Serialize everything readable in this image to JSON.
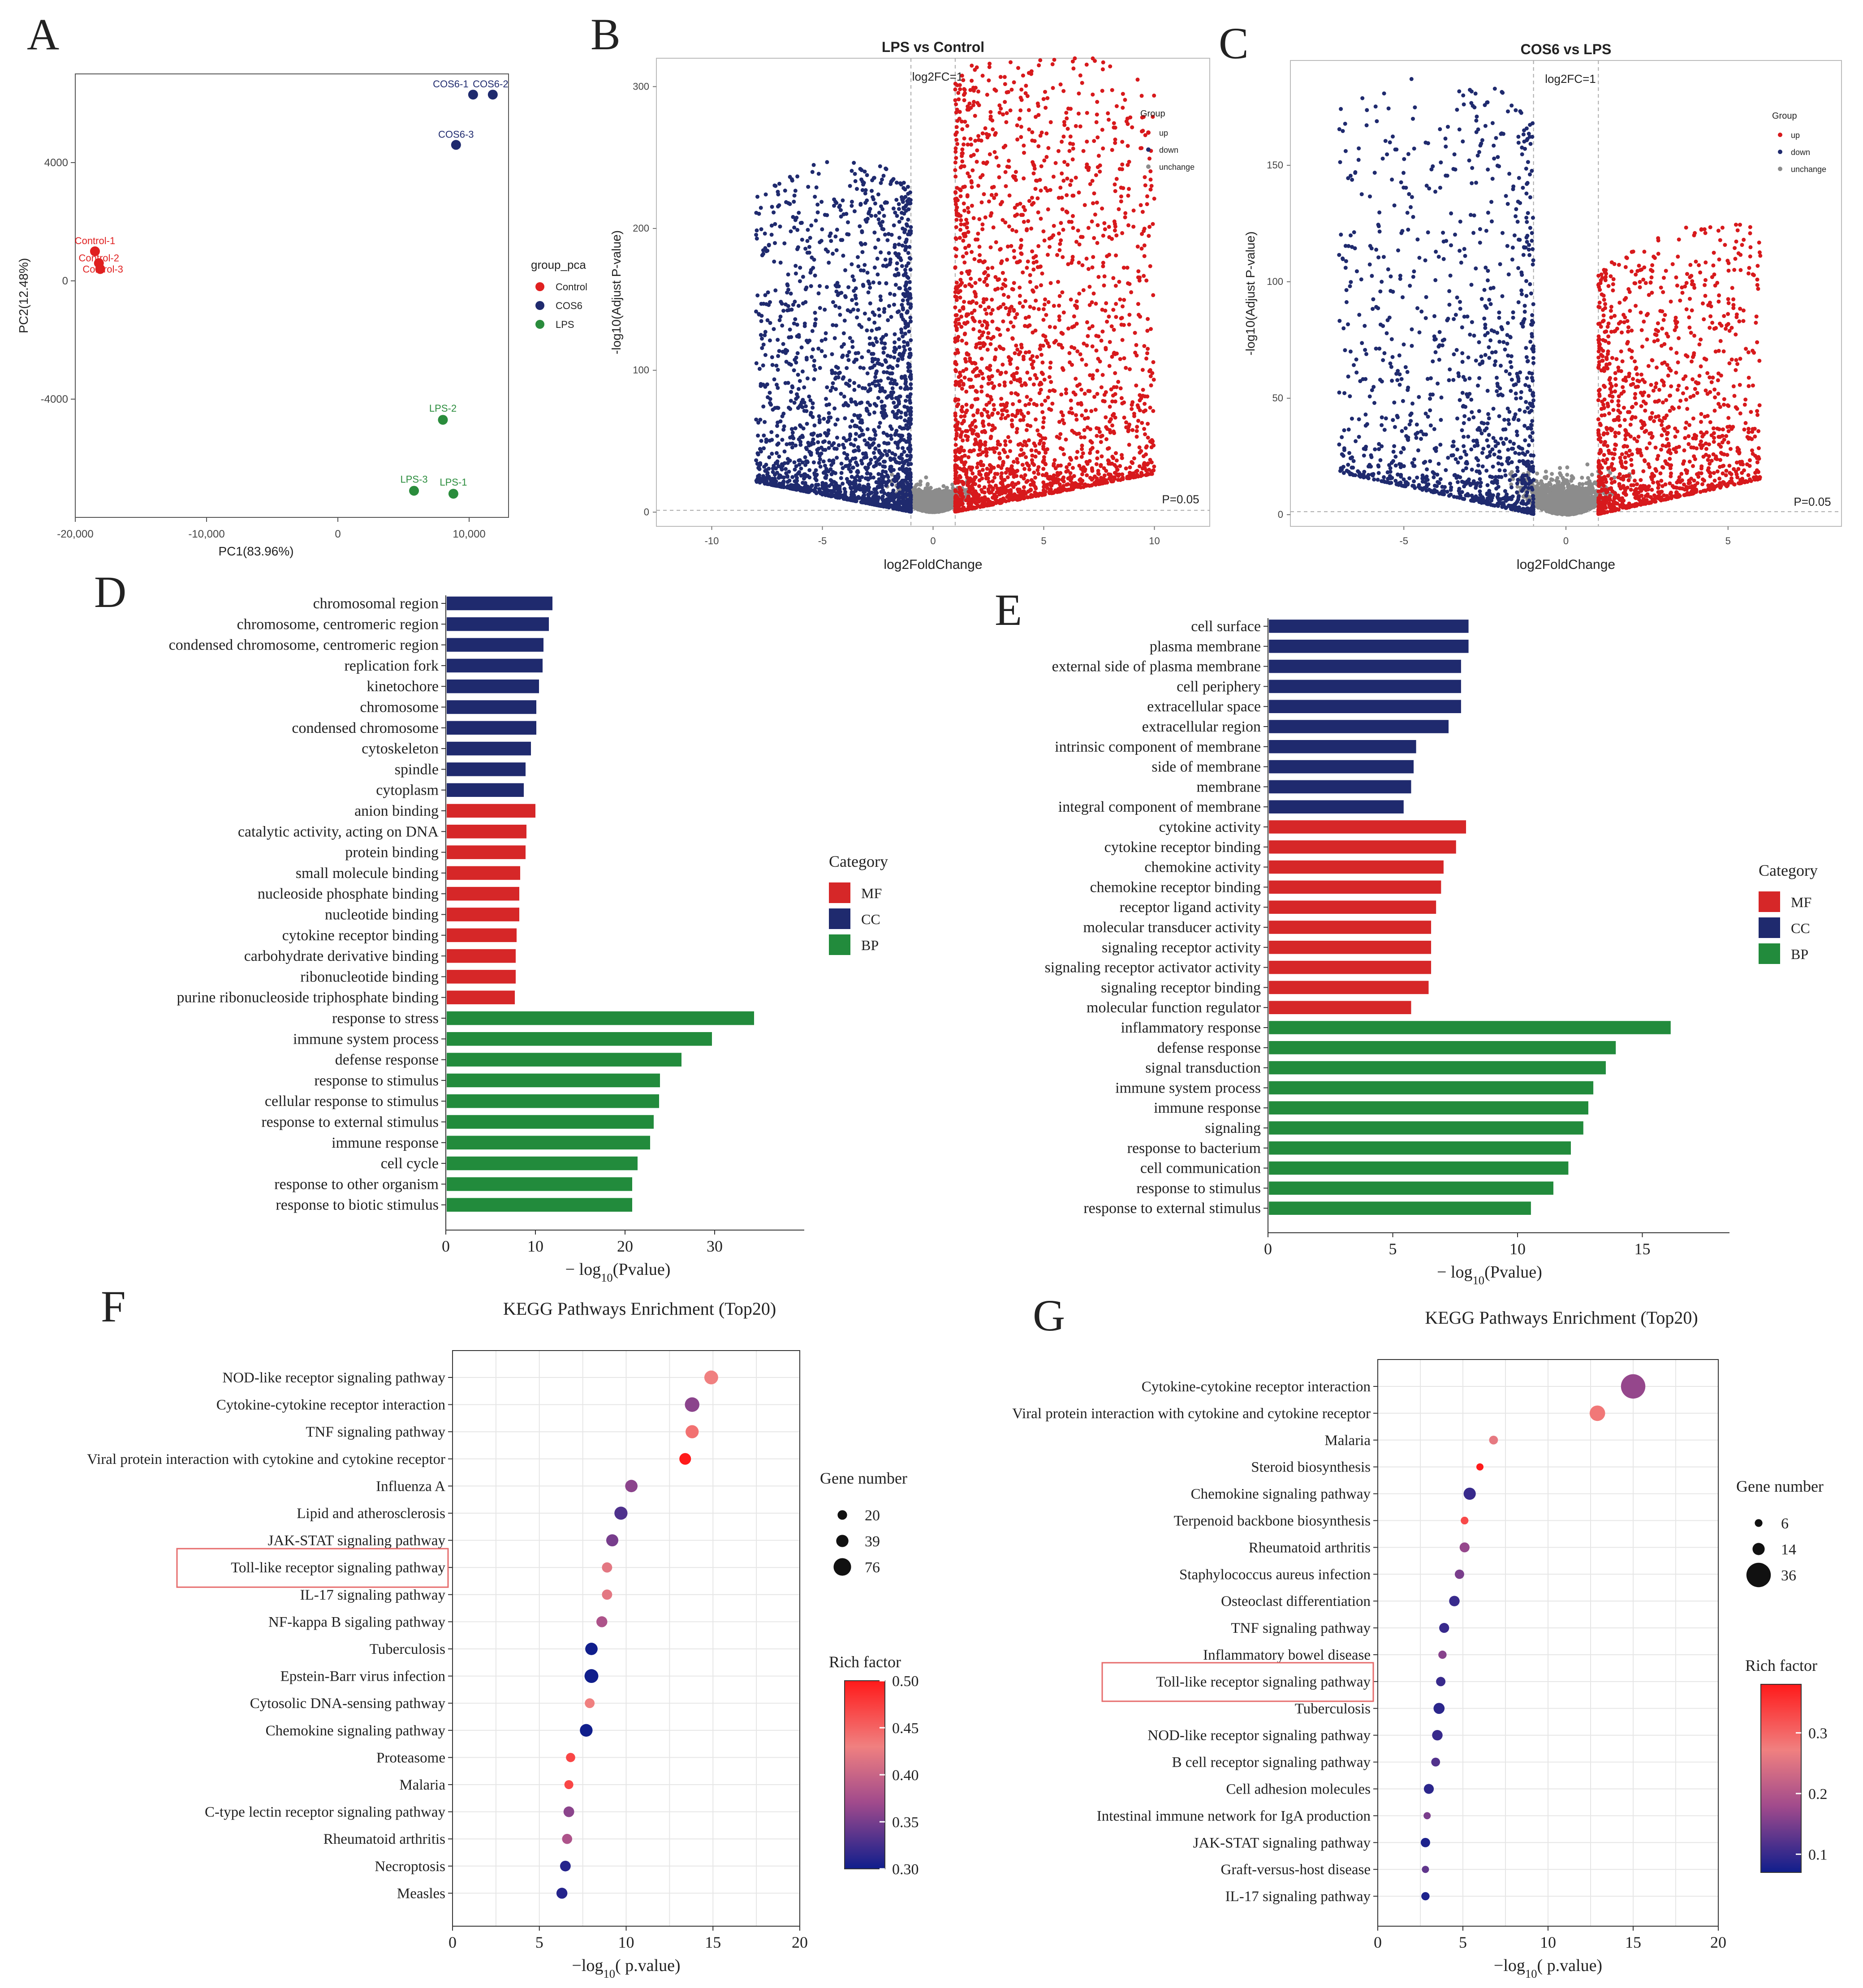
{
  "panels": {
    "A": "A",
    "B": "B",
    "C": "C",
    "D": "D",
    "E": "E",
    "F": "F",
    "G": "G"
  },
  "colors": {
    "up": "#d7191c",
    "down": "#1f2a6e",
    "unchange": "#8c8c8c",
    "MF": "#d62728",
    "CC": "#1f2a6e",
    "BP": "#228b3c",
    "control": "#e02020",
    "cos6": "#1f2a6e",
    "lps": "#2a8c3c",
    "highlight": "#e66b6b"
  },
  "chart_data": [
    {
      "id": "A",
      "type": "scatter",
      "title": "",
      "xlabel": "PC1(83.96%)",
      "ylabel": "PC2(12.48%)",
      "xlim": [
        -20000,
        13000
      ],
      "ylim": [
        -8000,
        7000
      ],
      "xticks": [
        -20000,
        -10000,
        0,
        10000
      ],
      "xtick_labels": [
        "-20,000",
        "-10,000",
        "0",
        "10,000"
      ],
      "yticks": [
        -4000,
        0,
        4000
      ],
      "ytick_labels": [
        "-4000",
        "0",
        "4000"
      ],
      "legend_title": "group_pca",
      "legend": [
        "Control",
        "COS6",
        "LPS"
      ],
      "points": [
        {
          "label": "Control-1",
          "group": "Control",
          "x": -18500,
          "y": 1000
        },
        {
          "label": "Control-2",
          "group": "Control",
          "x": -18200,
          "y": 600
        },
        {
          "label": "Control-3",
          "group": "Control",
          "x": -18100,
          "y": 400
        },
        {
          "label": "COS6-1",
          "group": "COS6",
          "x": 10300,
          "y": 6300
        },
        {
          "label": "COS6-2",
          "group": "COS6",
          "x": 11800,
          "y": 6300
        },
        {
          "label": "COS6-3",
          "group": "COS6",
          "x": 9000,
          "y": 4600
        },
        {
          "label": "LPS-1",
          "group": "LPS",
          "x": 8800,
          "y": -7200
        },
        {
          "label": "LPS-2",
          "group": "LPS",
          "x": 8000,
          "y": -4700
        },
        {
          "label": "LPS-3",
          "group": "LPS",
          "x": 5800,
          "y": -7100
        }
      ]
    },
    {
      "id": "B",
      "type": "scatter",
      "title": "LPS vs Control",
      "xlabel": "log2FoldChange",
      "ylabel": "-log10(Adjust P-value)",
      "xlim": [
        -12.5,
        12.5
      ],
      "ylim": [
        -10,
        320
      ],
      "xticks": [
        -10,
        -5,
        0,
        5,
        10
      ],
      "yticks": [
        0,
        100,
        200,
        300
      ],
      "fc_label": "log2FC=1",
      "p_label": "P=0.05",
      "legend_title": "Group",
      "legend": [
        "up",
        "down",
        "unchange"
      ],
      "volcano": {
        "up_max": 10,
        "down_min": -8,
        "peak_up": 320,
        "peak_down": 240
      }
    },
    {
      "id": "C",
      "type": "scatter",
      "title": "COS6 vs LPS",
      "xlabel": "log2FoldChange",
      "ylabel": "-log10(Adjust P-value)",
      "xlim": [
        -8.5,
        8.5
      ],
      "ylim": [
        -5,
        195
      ],
      "xticks": [
        -5,
        0,
        5
      ],
      "yticks": [
        0,
        50,
        100,
        150
      ],
      "fc_label": "log2FC=1",
      "p_label": "P=0.05",
      "legend_title": "Group",
      "legend": [
        "up",
        "down",
        "unchange"
      ],
      "volcano": {
        "up_max": 6,
        "down_min": -7,
        "peak_up": 115,
        "peak_down": 180
      }
    },
    {
      "id": "D",
      "type": "bar",
      "orientation": "horizontal",
      "xlabel": "− log10(Pvalue)",
      "xlim": [
        0,
        40
      ],
      "xticks": [
        0,
        10,
        20,
        30
      ],
      "legend_title": "Category",
      "legend": [
        "MF",
        "CC",
        "BP"
      ],
      "categories": [
        "chromosomal region",
        "chromosome, centromeric region",
        "condensed chromosome, centromeric region",
        "replication fork",
        "kinetochore",
        "chromosome",
        "condensed chromosome",
        "cytoskeleton",
        "spindle",
        "cytoplasm",
        "anion binding",
        "catalytic activity, acting on DNA",
        "protein binding",
        "small molecule binding",
        "nucleoside phosphate binding",
        "nucleotide binding",
        "cytokine receptor binding",
        "carbohydrate derivative binding",
        "ribonucleotide binding",
        "purine ribonucleoside triphosphate binding",
        "response to stress",
        "immune system process",
        "defense response",
        "response to stimulus",
        "cellular response to stimulus",
        "response to external stimulus",
        "immune response",
        "cell cycle",
        "response to other organism",
        "response to biotic stimulus"
      ],
      "groups": [
        "CC",
        "CC",
        "CC",
        "CC",
        "CC",
        "CC",
        "CC",
        "CC",
        "CC",
        "CC",
        "MF",
        "MF",
        "MF",
        "MF",
        "MF",
        "MF",
        "MF",
        "MF",
        "MF",
        "MF",
        "BP",
        "BP",
        "BP",
        "BP",
        "BP",
        "BP",
        "BP",
        "BP",
        "BP",
        "BP"
      ],
      "values": [
        11.8,
        11.4,
        10.8,
        10.7,
        10.3,
        10.0,
        10.0,
        9.4,
        8.8,
        8.6,
        9.9,
        8.9,
        8.8,
        8.2,
        8.1,
        8.1,
        7.8,
        7.7,
        7.7,
        7.6,
        34.3,
        29.6,
        26.2,
        23.8,
        23.7,
        23.1,
        22.7,
        21.3,
        20.7,
        20.7
      ]
    },
    {
      "id": "E",
      "type": "bar",
      "orientation": "horizontal",
      "xlabel": "− log10(Pvalue)",
      "xlim": [
        0,
        18.5
      ],
      "xticks": [
        0,
        5,
        10,
        15
      ],
      "legend_title": "Category",
      "legend": [
        "MF",
        "CC",
        "BP"
      ],
      "categories": [
        "cell surface",
        "plasma membrane",
        "external side of plasma membrane",
        "cell periphery",
        "extracellular space",
        "extracellular region",
        "intrinsic component of membrane",
        "side of membrane",
        "membrane",
        "integral component of membrane",
        "cytokine activity",
        "cytokine receptor binding",
        "chemokine activity",
        "chemokine receptor binding",
        "receptor ligand activity",
        "molecular transducer activity",
        "signaling receptor activity",
        "signaling receptor activator activity",
        "signaling receptor binding",
        "molecular function regulator",
        "inflammatory response",
        "defense response",
        "signal transduction",
        "immune system process",
        "immune response",
        "signaling",
        "response to bacterium",
        "cell communication",
        "response to stimulus",
        "response to external stimulus"
      ],
      "groups": [
        "CC",
        "CC",
        "CC",
        "CC",
        "CC",
        "CC",
        "CC",
        "CC",
        "CC",
        "CC",
        "MF",
        "MF",
        "MF",
        "MF",
        "MF",
        "MF",
        "MF",
        "MF",
        "MF",
        "MF",
        "BP",
        "BP",
        "BP",
        "BP",
        "BP",
        "BP",
        "BP",
        "BP",
        "BP",
        "BP"
      ],
      "values": [
        8.0,
        8.0,
        7.7,
        7.7,
        7.7,
        7.2,
        5.9,
        5.8,
        5.7,
        5.4,
        7.9,
        7.5,
        7.0,
        6.9,
        6.7,
        6.5,
        6.5,
        6.5,
        6.4,
        5.7,
        16.1,
        13.9,
        13.5,
        13.0,
        12.8,
        12.6,
        12.1,
        12.0,
        11.4,
        10.5
      ]
    },
    {
      "id": "F",
      "type": "scatter",
      "title": "KEGG Pathways Enrichment (Top20)",
      "xlabel": "−log10( p.value)",
      "xlim": [
        0,
        20
      ],
      "xticks": [
        0,
        5,
        10,
        15,
        20
      ],
      "size_title": "Gene number",
      "size_legend": [
        20,
        39,
        76
      ],
      "color_title": "Rich factor",
      "color_range": [
        0.3,
        0.5
      ],
      "color_ticks": [
        "0.50",
        "0.45",
        "0.40",
        "0.35",
        "0.30"
      ],
      "highlight": "Toll-like receptor signaling pathway",
      "categories": [
        "NOD-like receptor signaling pathway",
        "Cytokine-cytokine receptor interaction",
        "TNF signaling pathway",
        "Viral protein interaction with cytokine and cytokine receptor",
        "Influenza A",
        "Lipid and atherosclerosis",
        "JAK-STAT signaling pathway",
        "Toll-like receptor signaling pathway",
        "IL-17 signaling pathway",
        "NF-kappa B sigaling pathway",
        "Tuberculosis",
        "Epstein-Barr virus infection",
        "Cytosolic DNA-sensing pathway",
        "Chemokine signaling pathway",
        "Proteasome",
        "Malaria",
        "C-type lectin receptor signaling pathway",
        "Rheumatoid arthritis",
        "Necroptosis",
        "Measles"
      ],
      "x": [
        14.9,
        13.8,
        13.8,
        13.4,
        10.3,
        9.7,
        9.2,
        8.9,
        8.9,
        8.6,
        8.0,
        8.0,
        7.9,
        7.7,
        6.8,
        6.7,
        6.7,
        6.6,
        6.5,
        6.3
      ],
      "rich": [
        0.43,
        0.36,
        0.44,
        0.5,
        0.36,
        0.33,
        0.35,
        0.42,
        0.42,
        0.38,
        0.3,
        0.3,
        0.43,
        0.3,
        0.47,
        0.47,
        0.36,
        0.38,
        0.31,
        0.31
      ],
      "genes": [
        50,
        55,
        45,
        35,
        40,
        45,
        38,
        25,
        25,
        30,
        40,
        50,
        22,
        42,
        18,
        16,
        28,
        24,
        28,
        30
      ]
    },
    {
      "id": "G",
      "type": "scatter",
      "title": "KEGG Pathways Enrichment (Top20)",
      "xlabel": "−log10( p.value)",
      "xlim": [
        0,
        20
      ],
      "xticks": [
        0,
        5,
        10,
        15,
        20
      ],
      "size_title": "Gene number",
      "size_legend": [
        6,
        14,
        36
      ],
      "color_title": "Rich factor",
      "color_range": [
        0.07,
        0.38
      ],
      "color_ticks": [
        "0.3",
        "0.2",
        "0.1"
      ],
      "highlight": "Toll-like receptor signaling pathway",
      "categories": [
        "Cytokine-cytokine receptor interaction",
        "Viral protein interaction with cytokine and cytokine receptor",
        "Malaria",
        "Steroid biosynthesis",
        "Chemokine signaling pathway",
        "Terpenoid backbone biosynthesis",
        "Rheumatoid arthritis",
        "Staphylococcus aureus infection",
        "Osteoclast differentiation",
        "TNF signaling pathway",
        "Inflammatory bowel disease",
        "Toll-like receptor signaling pathway",
        "Tuberculosis",
        "NOD-like receptor signaling pathway",
        "B cell receptor signaling pathway",
        "Cell adhesion molecules",
        "Intestinal immune network for IgA production",
        "JAK-STAT signaling pathway",
        "Graft-versus-host disease",
        "IL-17 signaling pathway"
      ],
      "x": [
        15.0,
        12.9,
        6.8,
        6.0,
        5.4,
        5.1,
        5.1,
        4.8,
        4.5,
        3.9,
        3.8,
        3.7,
        3.6,
        3.5,
        3.4,
        3.0,
        2.9,
        2.8,
        2.8,
        2.8
      ],
      "rich": [
        0.17,
        0.28,
        0.26,
        0.38,
        0.1,
        0.33,
        0.17,
        0.15,
        0.1,
        0.1,
        0.16,
        0.1,
        0.09,
        0.1,
        0.12,
        0.09,
        0.15,
        0.08,
        0.13,
        0.08
      ],
      "genes": [
        36,
        20,
        8,
        5,
        14,
        6,
        10,
        9,
        11,
        10,
        7,
        9,
        12,
        11,
        8,
        10,
        5,
        9,
        5,
        7
      ]
    }
  ]
}
